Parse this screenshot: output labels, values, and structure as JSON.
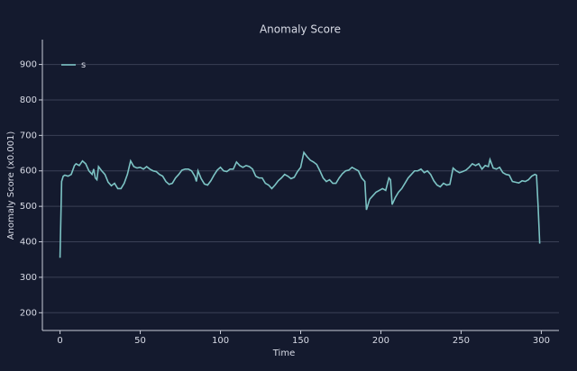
{
  "chart_data": {
    "type": "line",
    "title": "Anomaly Score",
    "x_label": "Time",
    "y_label": "Anomaly Score (x0.001)",
    "x": [
      0,
      1,
      2,
      3,
      5,
      7,
      9,
      10,
      12,
      14,
      16,
      18,
      19,
      20,
      21,
      22,
      23,
      24,
      26,
      28,
      30,
      32,
      34,
      36,
      38,
      40,
      42,
      44,
      46,
      48,
      50,
      52,
      54,
      56,
      58,
      60,
      62,
      64,
      66,
      68,
      70,
      72,
      74,
      76,
      78,
      80,
      82,
      84,
      85,
      86,
      88,
      90,
      92,
      94,
      96,
      98,
      100,
      102,
      104,
      106,
      108,
      110,
      112,
      114,
      116,
      118,
      120,
      122,
      124,
      126,
      128,
      130,
      132,
      134,
      136,
      138,
      140,
      142,
      144,
      146,
      148,
      150,
      152,
      154,
      156,
      158,
      160,
      162,
      164,
      166,
      168,
      170,
      172,
      174,
      176,
      178,
      180,
      182,
      184,
      186,
      188,
      190,
      191,
      193,
      195,
      197,
      199,
      201,
      203,
      205,
      206,
      207,
      209,
      211,
      213,
      215,
      217,
      219,
      221,
      223,
      225,
      227,
      229,
      231,
      233,
      235,
      237,
      239,
      241,
      243,
      245,
      247,
      249,
      251,
      253,
      255,
      257,
      259,
      261,
      263,
      265,
      267,
      268,
      270,
      272,
      274,
      276,
      278,
      280,
      282,
      284,
      286,
      288,
      290,
      292,
      294,
      296,
      297,
      298,
      299
    ],
    "series": [
      {
        "name": "s",
        "color": "#7cc3c4",
        "values": [
          355,
          570,
          585,
          588,
          585,
          590,
          615,
          620,
          615,
          628,
          620,
          600,
          595,
          590,
          605,
          580,
          575,
          612,
          600,
          590,
          568,
          558,
          565,
          550,
          550,
          565,
          590,
          628,
          612,
          608,
          610,
          605,
          612,
          605,
          600,
          598,
          590,
          585,
          570,
          562,
          565,
          580,
          590,
          602,
          605,
          605,
          600,
          585,
          570,
          600,
          578,
          563,
          560,
          572,
          588,
          602,
          610,
          600,
          598,
          605,
          605,
          625,
          615,
          610,
          615,
          612,
          605,
          585,
          580,
          580,
          565,
          560,
          550,
          560,
          572,
          580,
          590,
          585,
          578,
          582,
          598,
          610,
          652,
          640,
          630,
          625,
          618,
          600,
          580,
          570,
          575,
          565,
          565,
          580,
          592,
          600,
          602,
          610,
          605,
          600,
          580,
          570,
          490,
          520,
          530,
          540,
          545,
          550,
          545,
          580,
          575,
          505,
          525,
          540,
          550,
          565,
          580,
          590,
          600,
          600,
          605,
          595,
          600,
          590,
          572,
          560,
          555,
          565,
          560,
          562,
          608,
          600,
          595,
          598,
          602,
          610,
          620,
          615,
          620,
          605,
          615,
          612,
          632,
          608,
          605,
          610,
          595,
          590,
          588,
          570,
          568,
          566,
          572,
          570,
          575,
          585,
          590,
          588,
          500,
          395
        ]
      }
    ],
    "xlim": [
      -11,
      311
    ],
    "ylim": [
      150,
      970
    ],
    "xticks": [
      0,
      50,
      100,
      150,
      200,
      250,
      300
    ],
    "yticks": [
      200,
      300,
      400,
      500,
      600,
      700,
      800,
      900
    ],
    "grid": true,
    "legend": "upper left"
  }
}
